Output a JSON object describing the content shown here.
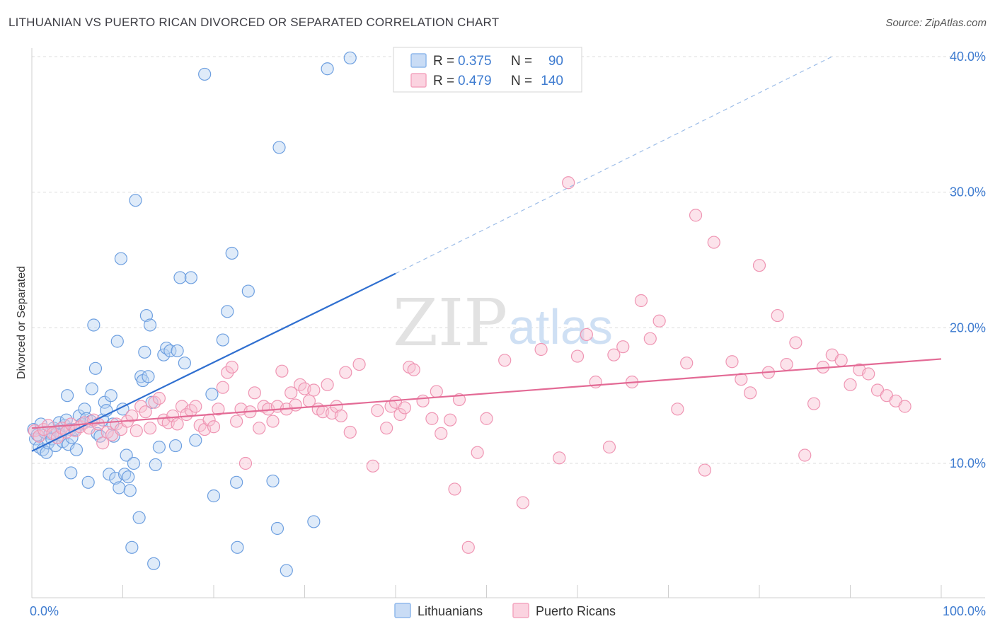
{
  "title": "LITHUANIAN VS PUERTO RICAN DIVORCED OR SEPARATED CORRELATION CHART",
  "source": "Source: ZipAtlas.com",
  "watermark": {
    "zip": "ZIP",
    "atlas": "atlas"
  },
  "legend": {
    "rows": [
      {
        "r_label": "R =",
        "r_value": "0.375",
        "n_label": "N =",
        "n_value": "90",
        "color": "#8fb8ec"
      },
      {
        "r_label": "R =",
        "r_value": "0.479",
        "n_label": "N =",
        "n_value": "140",
        "color": "#f4a6bf"
      }
    ]
  },
  "bottom_legend": [
    {
      "label": "Lithuanians",
      "color": "#8fb8ec"
    },
    {
      "label": "Puerto Ricans",
      "color": "#f4a6bf"
    }
  ],
  "chart_data": {
    "type": "scatter",
    "title": "LITHUANIAN VS PUERTO RICAN DIVORCED OR SEPARATED CORRELATION CHART",
    "ylabel": "Divorced or Separated",
    "xlabel": "",
    "xlim": [
      0,
      100
    ],
    "ylim": [
      0,
      41
    ],
    "x_tick_labels": [
      "0.0%",
      "100.0%"
    ],
    "y_ticks": [
      10,
      20,
      30,
      40
    ],
    "y_tick_labels": [
      "10.0%",
      "20.0%",
      "30.0%",
      "40.0%"
    ],
    "grid": true,
    "legend_position": "top-center",
    "series": [
      {
        "name": "Lithuanians",
        "color": "#8fb8ec",
        "line_color": "#2f6fd0",
        "trend": {
          "x0": 0,
          "y0": 10.9,
          "x1": 40,
          "y1": 24.0,
          "dashed_to_x": 88,
          "dashed_to_y": 40
        },
        "points": [
          [
            0.2,
            12.5
          ],
          [
            0.4,
            11.8
          ],
          [
            0.6,
            12.1
          ],
          [
            0.8,
            11.2
          ],
          [
            1.0,
            12.9
          ],
          [
            1.2,
            11.0
          ],
          [
            1.4,
            12.3
          ],
          [
            1.6,
            10.8
          ],
          [
            1.8,
            11.5
          ],
          [
            2.0,
            12.2
          ],
          [
            2.2,
            11.8
          ],
          [
            2.4,
            12.6
          ],
          [
            2.6,
            11.3
          ],
          [
            2.8,
            12.4
          ],
          [
            3.0,
            13.0
          ],
          [
            3.2,
            12.1
          ],
          [
            3.4,
            11.6
          ],
          [
            3.6,
            12.8
          ],
          [
            3.8,
            13.2
          ],
          [
            4.0,
            11.4
          ],
          [
            4.2,
            12.5
          ],
          [
            4.4,
            11.9
          ],
          [
            3.9,
            15.0
          ],
          [
            4.3,
            9.3
          ],
          [
            4.7,
            12.5
          ],
          [
            4.9,
            11.0
          ],
          [
            5.2,
            13.5
          ],
          [
            5.5,
            12.9
          ],
          [
            5.8,
            14.0
          ],
          [
            6.0,
            13.3
          ],
          [
            6.2,
            8.6
          ],
          [
            6.5,
            13.1
          ],
          [
            6.6,
            15.5
          ],
          [
            6.8,
            20.2
          ],
          [
            7.0,
            17.0
          ],
          [
            7.2,
            12.2
          ],
          [
            7.5,
            12.0
          ],
          [
            7.8,
            13.2
          ],
          [
            8.0,
            14.5
          ],
          [
            8.2,
            13.9
          ],
          [
            8.5,
            9.2
          ],
          [
            8.7,
            15.0
          ],
          [
            8.9,
            12.9
          ],
          [
            9.0,
            12.0
          ],
          [
            9.2,
            8.9
          ],
          [
            9.4,
            19.0
          ],
          [
            9.6,
            8.2
          ],
          [
            9.8,
            25.1
          ],
          [
            10.0,
            14.0
          ],
          [
            10.2,
            9.2
          ],
          [
            10.4,
            10.6
          ],
          [
            10.6,
            9.0
          ],
          [
            10.8,
            8.0
          ],
          [
            11.0,
            3.8
          ],
          [
            11.2,
            10.0
          ],
          [
            11.4,
            29.4
          ],
          [
            11.8,
            6.0
          ],
          [
            12.0,
            16.4
          ],
          [
            12.2,
            16.1
          ],
          [
            12.4,
            18.2
          ],
          [
            12.6,
            20.9
          ],
          [
            12.8,
            16.4
          ],
          [
            13.0,
            20.2
          ],
          [
            13.2,
            14.5
          ],
          [
            13.4,
            2.6
          ],
          [
            13.6,
            9.9
          ],
          [
            14.0,
            11.2
          ],
          [
            14.5,
            18.0
          ],
          [
            14.8,
            18.5
          ],
          [
            15.2,
            18.3
          ],
          [
            15.8,
            11.3
          ],
          [
            16.0,
            18.3
          ],
          [
            16.3,
            23.7
          ],
          [
            16.8,
            17.4
          ],
          [
            17.5,
            23.7
          ],
          [
            18.0,
            11.7
          ],
          [
            19.0,
            38.7
          ],
          [
            19.8,
            15.1
          ],
          [
            20.0,
            7.6
          ],
          [
            21.0,
            19.1
          ],
          [
            21.5,
            21.2
          ],
          [
            22.0,
            25.5
          ],
          [
            22.5,
            8.6
          ],
          [
            22.6,
            3.8
          ],
          [
            23.8,
            22.7
          ],
          [
            26.5,
            8.7
          ],
          [
            27.0,
            5.2
          ],
          [
            27.2,
            33.3
          ],
          [
            28.0,
            2.1
          ],
          [
            31.0,
            5.7
          ],
          [
            32.5,
            39.1
          ],
          [
            35.0,
            39.9
          ]
        ]
      },
      {
        "name": "Puerto Ricans",
        "color": "#f4a6bf",
        "line_color": "#e36a95",
        "trend": {
          "x0": 0,
          "y0": 12.6,
          "x1": 100,
          "y1": 17.7
        },
        "points": [
          [
            0.3,
            12.4
          ],
          [
            0.8,
            12.0
          ],
          [
            1.3,
            12.5
          ],
          [
            1.8,
            12.8
          ],
          [
            2.3,
            12.2
          ],
          [
            2.8,
            11.9
          ],
          [
            3.3,
            12.6
          ],
          [
            3.8,
            12.3
          ],
          [
            4.3,
            12.9
          ],
          [
            4.8,
            12.4
          ],
          [
            5.3,
            12.7
          ],
          [
            5.8,
            13.0
          ],
          [
            6.3,
            12.6
          ],
          [
            6.8,
            13.2
          ],
          [
            7.3,
            12.9
          ],
          [
            7.8,
            11.5
          ],
          [
            8.3,
            12.3
          ],
          [
            8.8,
            12.1
          ],
          [
            9.3,
            12.9
          ],
          [
            9.8,
            12.5
          ],
          [
            10.5,
            13.1
          ],
          [
            11.0,
            13.5
          ],
          [
            11.5,
            12.4
          ],
          [
            12.0,
            14.2
          ],
          [
            12.5,
            13.8
          ],
          [
            13.0,
            12.6
          ],
          [
            13.5,
            14.5
          ],
          [
            14.0,
            14.8
          ],
          [
            14.5,
            13.2
          ],
          [
            15.0,
            13.0
          ],
          [
            15.5,
            13.5
          ],
          [
            16.0,
            12.9
          ],
          [
            16.5,
            14.2
          ],
          [
            17.0,
            13.6
          ],
          [
            17.5,
            13.9
          ],
          [
            18.0,
            14.2
          ],
          [
            18.5,
            12.8
          ],
          [
            19.0,
            12.5
          ],
          [
            19.5,
            13.2
          ],
          [
            20.0,
            12.7
          ],
          [
            20.5,
            14.0
          ],
          [
            21.0,
            15.6
          ],
          [
            21.5,
            16.7
          ],
          [
            22.0,
            17.1
          ],
          [
            22.5,
            13.1
          ],
          [
            23.0,
            14.0
          ],
          [
            23.5,
            10.0
          ],
          [
            24.0,
            13.8
          ],
          [
            24.5,
            15.2
          ],
          [
            25.0,
            12.6
          ],
          [
            25.5,
            14.2
          ],
          [
            26.0,
            14.0
          ],
          [
            26.5,
            13.1
          ],
          [
            27.0,
            14.2
          ],
          [
            27.5,
            16.8
          ],
          [
            28.0,
            14.0
          ],
          [
            28.5,
            15.2
          ],
          [
            29.0,
            14.3
          ],
          [
            29.5,
            15.8
          ],
          [
            30.0,
            15.5
          ],
          [
            30.5,
            14.6
          ],
          [
            31.0,
            15.4
          ],
          [
            31.5,
            14.0
          ],
          [
            32.0,
            13.8
          ],
          [
            32.5,
            15.8
          ],
          [
            33.0,
            13.7
          ],
          [
            33.5,
            14.2
          ],
          [
            34.0,
            13.5
          ],
          [
            34.5,
            16.7
          ],
          [
            35.0,
            12.3
          ],
          [
            36.0,
            17.3
          ],
          [
            37.5,
            9.8
          ],
          [
            38.0,
            13.9
          ],
          [
            39.0,
            12.6
          ],
          [
            39.5,
            14.2
          ],
          [
            40.0,
            14.5
          ],
          [
            40.5,
            13.6
          ],
          [
            41.0,
            14.1
          ],
          [
            41.5,
            17.1
          ],
          [
            42.0,
            16.9
          ],
          [
            43.0,
            14.6
          ],
          [
            44.0,
            13.3
          ],
          [
            44.5,
            15.3
          ],
          [
            45.0,
            12.2
          ],
          [
            46.0,
            13.2
          ],
          [
            46.5,
            8.1
          ],
          [
            47.0,
            14.7
          ],
          [
            48.0,
            3.8
          ],
          [
            49.0,
            10.8
          ],
          [
            50.0,
            13.3
          ],
          [
            52.0,
            17.6
          ],
          [
            54.0,
            7.1
          ],
          [
            56.0,
            18.4
          ],
          [
            58.0,
            10.4
          ],
          [
            59.0,
            30.7
          ],
          [
            60.0,
            17.9
          ],
          [
            61.0,
            19.5
          ],
          [
            62.0,
            16.0
          ],
          [
            63.5,
            11.2
          ],
          [
            64.0,
            18.0
          ],
          [
            65.0,
            18.6
          ],
          [
            66.0,
            16.0
          ],
          [
            67.0,
            22.0
          ],
          [
            68.0,
            19.2
          ],
          [
            69.0,
            20.5
          ],
          [
            71.0,
            14.0
          ],
          [
            72.0,
            17.4
          ],
          [
            73.0,
            28.3
          ],
          [
            74.0,
            9.5
          ],
          [
            75.0,
            26.3
          ],
          [
            77.0,
            17.5
          ],
          [
            78.0,
            16.2
          ],
          [
            79.0,
            15.2
          ],
          [
            80.0,
            24.6
          ],
          [
            81.0,
            16.7
          ],
          [
            82.0,
            20.9
          ],
          [
            83.0,
            17.3
          ],
          [
            84.0,
            18.9
          ],
          [
            85.0,
            10.6
          ],
          [
            86.0,
            14.4
          ],
          [
            87.0,
            17.1
          ],
          [
            88.0,
            18.0
          ],
          [
            89.0,
            17.6
          ],
          [
            90.0,
            15.8
          ],
          [
            91.0,
            16.9
          ],
          [
            92.0,
            16.6
          ],
          [
            93.0,
            15.4
          ],
          [
            94.0,
            15.0
          ],
          [
            95.0,
            14.6
          ],
          [
            96.0,
            14.2
          ]
        ]
      }
    ]
  }
}
